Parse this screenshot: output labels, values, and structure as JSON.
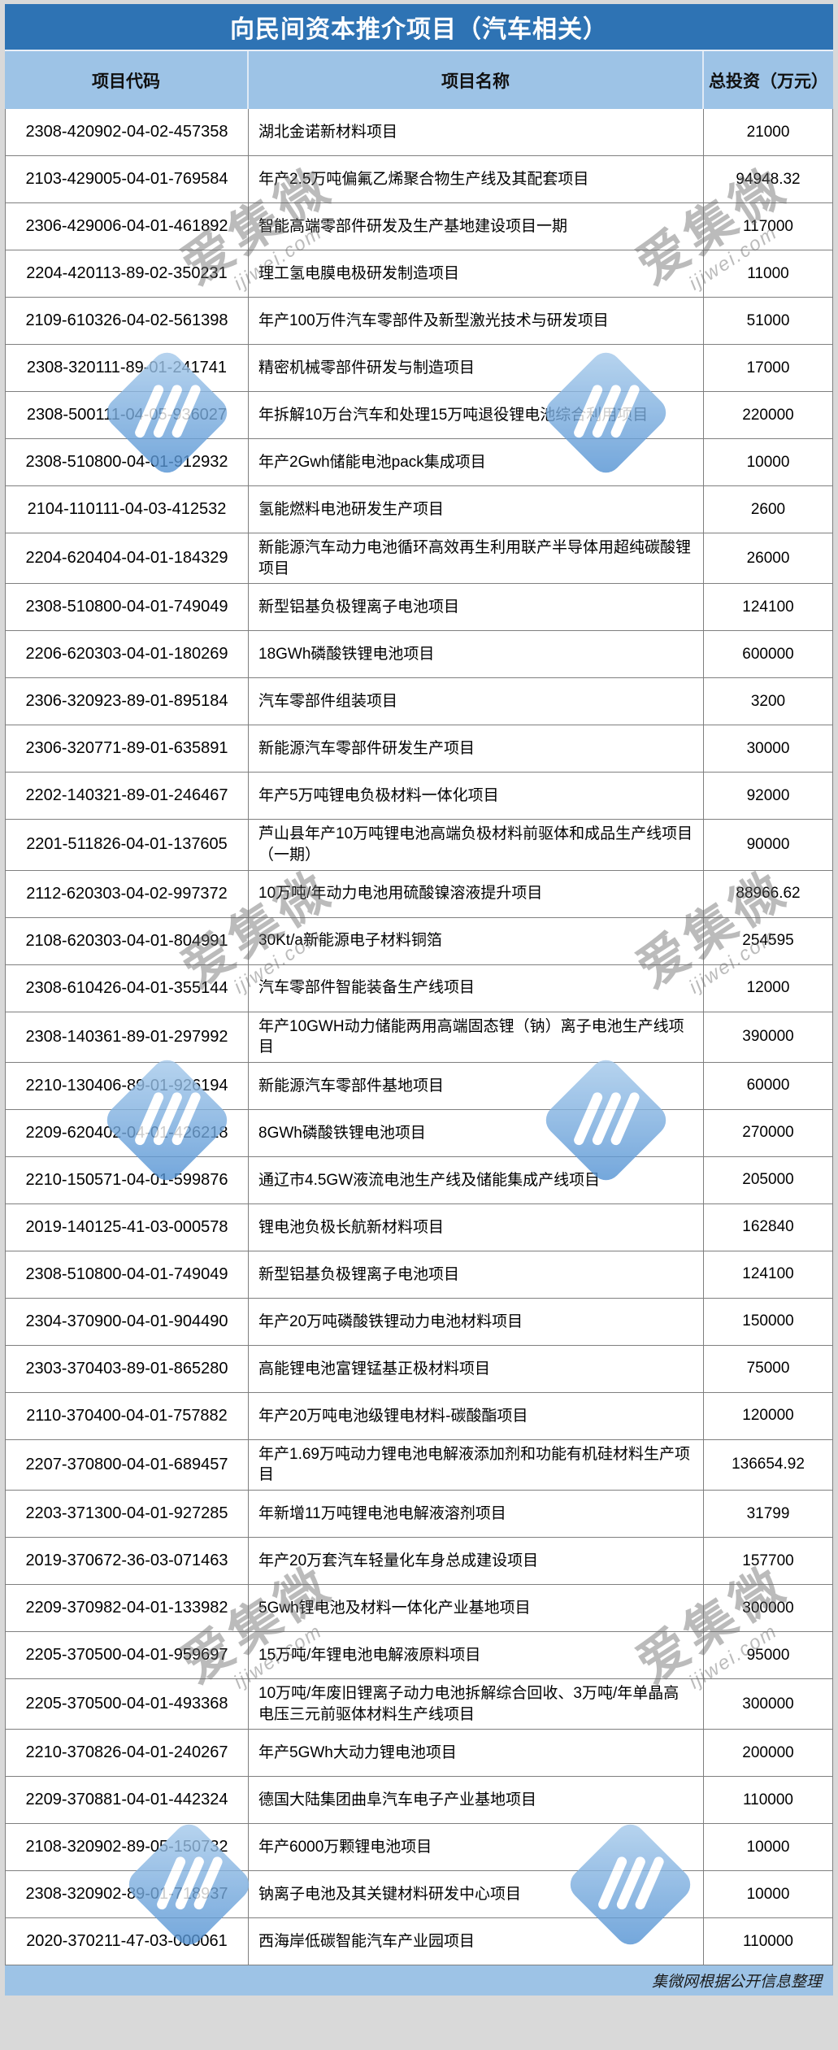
{
  "title": "向民间资本推介项目（汽车相关）",
  "columns": {
    "code": "项目代码",
    "name": "项目名称",
    "investment": "总投资（万元）"
  },
  "footer_note": "集微网根据公开信息整理",
  "watermark": {
    "text": "爱集微",
    "subtext": "ijiwei.com"
  },
  "colors": {
    "title_bar": "#2E73B4",
    "header_band": "#9DC3E6",
    "footer_band": "#9DC3E6",
    "row_border": "#7f7f7f",
    "watermark_blue": "#4E8FD2"
  },
  "rows": [
    {
      "code": "2308-420902-04-02-457358",
      "name": "湖北金诺新材料项目",
      "investment": "21000"
    },
    {
      "code": "2103-429005-04-01-769584",
      "name": "年产2.5万吨偏氟乙烯聚合物生产线及其配套项目",
      "investment": "94948.32"
    },
    {
      "code": "2306-429006-04-01-461892",
      "name": "智能高端零部件研发及生产基地建设项目一期",
      "investment": "117000"
    },
    {
      "code": "2204-420113-89-02-350231",
      "name": "理工氢电膜电极研发制造项目",
      "investment": "11000"
    },
    {
      "code": "2109-610326-04-02-561398",
      "name": "年产100万件汽车零部件及新型激光技术与研发项目",
      "investment": "51000"
    },
    {
      "code": "2308-320111-89-01-241741",
      "name": "精密机械零部件研发与制造项目",
      "investment": "17000"
    },
    {
      "code": "2308-500111-04-05-936027",
      "name": "年拆解10万台汽车和处理15万吨退役锂电池综合利用项目",
      "investment": "220000"
    },
    {
      "code": "2308-510800-04-01-912932",
      "name": "年产2Gwh储能电池pack集成项目",
      "investment": "10000"
    },
    {
      "code": "2104-110111-04-03-412532",
      "name": "氢能燃料电池研发生产项目",
      "investment": "2600"
    },
    {
      "code": "2204-620404-04-01-184329",
      "name": "新能源汽车动力电池循环高效再生利用联产半导体用超纯碳酸锂项目",
      "investment": "26000"
    },
    {
      "code": "2308-510800-04-01-749049",
      "name": "新型铝基负极锂离子电池项目",
      "investment": "124100"
    },
    {
      "code": "2206-620303-04-01-180269",
      "name": "18GWh磷酸铁锂电池项目",
      "investment": "600000"
    },
    {
      "code": "2306-320923-89-01-895184",
      "name": "汽车零部件组装项目",
      "investment": "3200"
    },
    {
      "code": "2306-320771-89-01-635891",
      "name": "新能源汽车零部件研发生产项目",
      "investment": "30000"
    },
    {
      "code": "2202-140321-89-01-246467",
      "name": "年产5万吨锂电负极材料一体化项目",
      "investment": "92000"
    },
    {
      "code": "2201-511826-04-01-137605",
      "name": "芦山县年产10万吨锂电池高端负极材料前驱体和成品生产线项目（一期）",
      "investment": "90000"
    },
    {
      "code": "2112-620303-04-02-997372",
      "name": "10万吨/年动力电池用硫酸镍溶液提升项目",
      "investment": "88966.62"
    },
    {
      "code": "2108-620303-04-01-804991",
      "name": "30Kt/a新能源电子材料铜箔",
      "investment": "254595"
    },
    {
      "code": "2308-610426-04-01-355144",
      "name": "汽车零部件智能装备生产线项目",
      "investment": "12000"
    },
    {
      "code": "2308-140361-89-01-297992",
      "name": "年产10GWH动力储能两用高端固态锂（钠）离子电池生产线项目",
      "investment": "390000"
    },
    {
      "code": "2210-130406-89-01-926194",
      "name": "新能源汽车零部件基地项目",
      "investment": "60000"
    },
    {
      "code": "2209-620402-04-01-426218",
      "name": "8GWh磷酸铁锂电池项目",
      "investment": "270000"
    },
    {
      "code": "2210-150571-04-01-599876",
      "name": "通辽市4.5GW液流电池生产线及储能集成产线项目",
      "investment": "205000"
    },
    {
      "code": "2019-140125-41-03-000578",
      "name": "锂电池负极长航新材料项目",
      "investment": "162840"
    },
    {
      "code": "2308-510800-04-01-749049",
      "name": "新型铝基负极锂离子电池项目",
      "investment": "124100"
    },
    {
      "code": "2304-370900-04-01-904490",
      "name": "年产20万吨磷酸铁锂动力电池材料项目",
      "investment": "150000"
    },
    {
      "code": "2303-370403-89-01-865280",
      "name": "高能锂电池富锂锰基正极材料项目",
      "investment": "75000"
    },
    {
      "code": "2110-370400-04-01-757882",
      "name": "年产20万吨电池级锂电材料-碳酸酯项目",
      "investment": "120000"
    },
    {
      "code": "2207-370800-04-01-689457",
      "name": "年产1.69万吨动力锂电池电解液添加剂和功能有机硅材料生产项目",
      "investment": "136654.92"
    },
    {
      "code": "2203-371300-04-01-927285",
      "name": "年新增11万吨锂电池电解液溶剂项目",
      "investment": "31799"
    },
    {
      "code": "2019-370672-36-03-071463",
      "name": "年产20万套汽车轻量化车身总成建设项目",
      "investment": "157700"
    },
    {
      "code": "2209-370982-04-01-133982",
      "name": "5Gwh锂电池及材料一体化产业基地项目",
      "investment": "300000"
    },
    {
      "code": "2205-370500-04-01-959697",
      "name": "15万吨/年锂电池电解液原料项目",
      "investment": "95000"
    },
    {
      "code": "2205-370500-04-01-493368",
      "name": "10万吨/年废旧锂离子动力电池拆解综合回收、3万吨/年单晶高电压三元前驱体材料生产线项目",
      "investment": "300000"
    },
    {
      "code": "2210-370826-04-01-240267",
      "name": "年产5GWh大动力锂电池项目",
      "investment": "200000"
    },
    {
      "code": "2209-370881-04-01-442324",
      "name": "德国大陆集团曲阜汽车电子产业基地项目",
      "investment": "110000"
    },
    {
      "code": "2108-320902-89-05-150732",
      "name": "年产6000万颗锂电池项目",
      "investment": "10000"
    },
    {
      "code": "2308-320902-89-01-718937",
      "name": "钠离子电池及其关键材料研发中心项目",
      "investment": "10000"
    },
    {
      "code": "2020-370211-47-03-000061",
      "name": "西海岸低碳智能汽车产业园项目",
      "investment": "110000"
    }
  ]
}
